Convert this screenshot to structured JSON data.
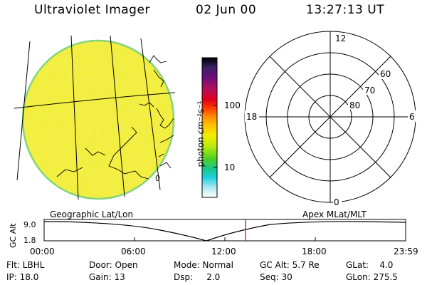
{
  "header": {
    "instrument": "Ultraviolet Imager",
    "date": "02 Jun 00",
    "time": "13:27:13 UT"
  },
  "image_panel": {
    "label_left": "Geographic Lat/Lon",
    "corner_mark": "0"
  },
  "colorbar": {
    "unit": "photon cm⁻²s⁻¹",
    "ticks": [
      "100",
      "10"
    ],
    "colors": [
      "#000000",
      "#3b1f66",
      "#6a0f7a",
      "#b01060",
      "#e0001e",
      "#ff3a00",
      "#ff8a00",
      "#ffc000",
      "#f4ee00",
      "#b4ea10",
      "#4ed020",
      "#18c890",
      "#20d0e0",
      "#b0e8f0",
      "#ffffff"
    ]
  },
  "polar": {
    "label": "Apex MLat/MLT",
    "mlt_labels": {
      "top": "12",
      "left": "18",
      "right": "6",
      "bottom": "0"
    },
    "lat_labels": [
      "60",
      "70",
      "80"
    ]
  },
  "timeline": {
    "y_title": "GC Alt",
    "y_ticks": [
      "9.0",
      "1.8"
    ],
    "x_ticks": [
      "00:00",
      "06:00",
      "12:00",
      "18:00",
      "23:59"
    ],
    "marker_time": "13:27:13"
  },
  "info": {
    "row1": {
      "flt": "Flt: LBHL",
      "door": "Door: Open",
      "mode": "Mode: Normal",
      "gc_alt": "GC Alt: 5.7 Re",
      "glat": "GLat:    4.0"
    },
    "row2": {
      "ip": "IP: 18.0",
      "gain": "Gain: 13",
      "dsp": "Dsp:     2.0",
      "seq": "Seq: 30",
      "glon": "GLon: 275.5"
    }
  },
  "style": {
    "disk_fill": "#f2ee3a",
    "disk_edge": "#7fd27a",
    "marker_color": "#cc0000"
  }
}
